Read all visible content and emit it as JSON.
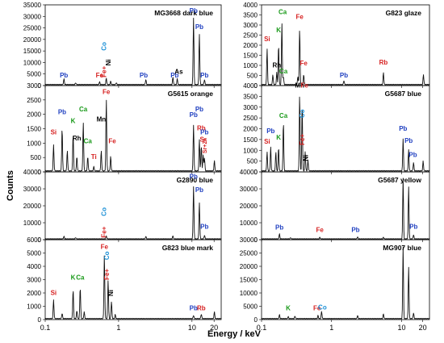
{
  "chart_data": {
    "type": "line",
    "xlabel": "Energy / keV",
    "ylabel": "Counts",
    "xscale": "log",
    "xlim": [
      0.1,
      25
    ],
    "xticks": [
      0.1,
      1,
      10,
      20
    ],
    "xtick_labels": [
      "0.1",
      "1",
      "10",
      "20"
    ],
    "colors": {
      "Pb": "#1f3fc0",
      "Fe": "#d61f1f",
      "Co": "#1a8fd6",
      "green": "#1a9a1a",
      "black": "#000000"
    },
    "panels": [
      {
        "title": "MG3668  dark blue",
        "column": 0,
        "ylim": [
          0,
          35000
        ],
        "yticks": [
          0,
          5000,
          10000,
          15000,
          20000,
          25000,
          30000,
          35000
        ],
        "labels": [
          {
            "text": "Pb",
            "color": "#1f3fc0",
            "x": 0.18,
            "y": 3500
          },
          {
            "text": "Fe",
            "color": "#d61f1f",
            "x": 0.55,
            "y": 3500
          },
          {
            "text": "Fe+",
            "color": "#d61f1f",
            "x": 0.68,
            "y": 6000,
            "rot": -90
          },
          {
            "text": "Co",
            "color": "#1a8fd6",
            "x": 0.68,
            "y": 17000,
            "rot": -90
          },
          {
            "text": "Ni",
            "color": "#000000",
            "x": 0.78,
            "y": 10000,
            "rot": -90
          },
          {
            "text": "Pb",
            "color": "#1f3fc0",
            "x": 2.2,
            "y": 3500
          },
          {
            "text": "Pb",
            "color": "#1f3fc0",
            "x": 10.5,
            "y": 31500
          },
          {
            "text": "Pb",
            "color": "#1f3fc0",
            "x": 5.8,
            "y": 3500
          },
          {
            "text": "As",
            "color": "#000000",
            "x": 6.6,
            "y": 5000
          },
          {
            "text": "Pb",
            "color": "#1f3fc0",
            "x": 12.6,
            "y": 24500
          },
          {
            "text": "Pb",
            "color": "#1f3fc0",
            "x": 14.8,
            "y": 3500
          }
        ],
        "peaks": [
          {
            "x": 0.18,
            "y": 2500
          },
          {
            "x": 0.26,
            "y": 800
          },
          {
            "x": 0.55,
            "y": 1200
          },
          {
            "x": 0.68,
            "y": 2800
          },
          {
            "x": 0.78,
            "y": 1400
          },
          {
            "x": 0.93,
            "y": 800
          },
          {
            "x": 2.35,
            "y": 2200
          },
          {
            "x": 5.5,
            "y": 3200
          },
          {
            "x": 6.3,
            "y": 2500
          },
          {
            "x": 10.5,
            "y": 29000
          },
          {
            "x": 12.6,
            "y": 22000
          },
          {
            "x": 14.8,
            "y": 2200
          }
        ]
      },
      {
        "title": "G5615  orange",
        "column": 0,
        "ylim": [
          0,
          3000
        ],
        "yticks": [
          0,
          500,
          1000,
          1500,
          2000,
          2500,
          3000
        ],
        "labels": [
          {
            "text": "Si",
            "color": "#d61f1f",
            "x": 0.13,
            "y": 1300
          },
          {
            "text": "Pb",
            "color": "#1f3fc0",
            "x": 0.17,
            "y": 2000
          },
          {
            "text": "K",
            "color": "#1a9a1a",
            "x": 0.24,
            "y": 1700
          },
          {
            "text": "Rh",
            "color": "#000000",
            "x": 0.27,
            "y": 1100
          },
          {
            "text": "Ca",
            "color": "#1a9a1a",
            "x": 0.33,
            "y": 2100
          },
          {
            "text": "Ca",
            "color": "#1a9a1a",
            "x": 0.38,
            "y": 1000
          },
          {
            "text": "Ti",
            "color": "#d61f1f",
            "x": 0.46,
            "y": 450
          },
          {
            "text": "Mn",
            "color": "#000000",
            "x": 0.58,
            "y": 1750
          },
          {
            "text": "Fe",
            "color": "#d61f1f",
            "x": 0.68,
            "y": 2700
          },
          {
            "text": "Fe",
            "color": "#d61f1f",
            "x": 0.82,
            "y": 1000
          },
          {
            "text": "Pb",
            "color": "#1f3fc0",
            "x": 10.5,
            "y": 1900
          },
          {
            "text": "Rb",
            "color": "#d61f1f",
            "x": 13.4,
            "y": 1450
          },
          {
            "text": "Pb",
            "color": "#1f3fc0",
            "x": 12.6,
            "y": 2100
          },
          {
            "text": "Sr",
            "color": "#d61f1f",
            "x": 14.2,
            "y": 1050
          },
          {
            "text": "Pb",
            "color": "#1f3fc0",
            "x": 14.8,
            "y": 1300
          },
          {
            "text": "Sr+Zr",
            "color": "#d61f1f",
            "x": 15.8,
            "y": 900,
            "rot": -90
          }
        ],
        "peaks": [
          {
            "x": 0.13,
            "y": 900
          },
          {
            "x": 0.17,
            "y": 1500
          },
          {
            "x": 0.2,
            "y": 700
          },
          {
            "x": 0.24,
            "y": 1300
          },
          {
            "x": 0.27,
            "y": 500
          },
          {
            "x": 0.33,
            "y": 1700
          },
          {
            "x": 0.38,
            "y": 500
          },
          {
            "x": 0.46,
            "y": 150
          },
          {
            "x": 0.58,
            "y": 700
          },
          {
            "x": 0.68,
            "y": 2500
          },
          {
            "x": 0.78,
            "y": 500
          },
          {
            "x": 10.5,
            "y": 1600
          },
          {
            "x": 12.6,
            "y": 1100
          },
          {
            "x": 13.4,
            "y": 900
          },
          {
            "x": 14.2,
            "y": 550
          },
          {
            "x": 14.8,
            "y": 450
          },
          {
            "x": 20.2,
            "y": 350
          }
        ]
      },
      {
        "title": "G2890 blue",
        "column": 0,
        "ylim": [
          0,
          40000
        ],
        "yticks": [
          0,
          10000,
          20000,
          30000,
          40000
        ],
        "labels": [
          {
            "text": "Fe+",
            "color": "#d61f1f",
            "x": 0.68,
            "y": 4500,
            "rot": -90
          },
          {
            "text": "Co",
            "color": "#1a8fd6",
            "x": 0.68,
            "y": 16500,
            "rot": -90
          },
          {
            "text": "Pb",
            "color": "#1f3fc0",
            "x": 10.5,
            "y": 36000
          },
          {
            "text": "Pb",
            "color": "#1f3fc0",
            "x": 12.6,
            "y": 28000
          },
          {
            "text": "Pb",
            "color": "#1f3fc0",
            "x": 14.8,
            "y": 6500
          }
        ],
        "peaks": [
          {
            "x": 0.18,
            "y": 1500
          },
          {
            "x": 0.26,
            "y": 800
          },
          {
            "x": 0.68,
            "y": 1800
          },
          {
            "x": 2.35,
            "y": 1500
          },
          {
            "x": 5.5,
            "y": 1800
          },
          {
            "x": 10.5,
            "y": 31000
          },
          {
            "x": 12.6,
            "y": 21500
          },
          {
            "x": 14.8,
            "y": 2200
          }
        ]
      },
      {
        "title": "G823 blue mark",
        "column": 0,
        "ylim": [
          0,
          6000
        ],
        "yticks": [
          0,
          1000,
          2000,
          3000,
          4000,
          5000,
          6000
        ],
        "labels": [
          {
            "text": "Si",
            "color": "#d61f1f",
            "x": 0.13,
            "y": 1850
          },
          {
            "text": "K",
            "color": "#1a9a1a",
            "x": 0.24,
            "y": 3000
          },
          {
            "text": "Ca",
            "color": "#1a9a1a",
            "x": 0.3,
            "y": 3000
          },
          {
            "text": "Fe",
            "color": "#d61f1f",
            "x": 0.64,
            "y": 5300
          },
          {
            "text": "Fe+",
            "color": "#d61f1f",
            "x": 0.74,
            "y": 3400,
            "rot": -90
          },
          {
            "text": "Co",
            "color": "#1a8fd6",
            "x": 0.74,
            "y": 4800,
            "rot": -90
          },
          {
            "text": "Ni",
            "color": "#000000",
            "x": 0.84,
            "y": 2000,
            "rot": -90
          },
          {
            "text": "Pb",
            "color": "#1f3fc0",
            "x": 10.5,
            "y": 700
          },
          {
            "text": "Rb",
            "color": "#d61f1f",
            "x": 13.4,
            "y": 700
          }
        ],
        "peaks": [
          {
            "x": 0.13,
            "y": 1400
          },
          {
            "x": 0.17,
            "y": 400
          },
          {
            "x": 0.24,
            "y": 2200
          },
          {
            "x": 0.27,
            "y": 600
          },
          {
            "x": 0.3,
            "y": 2400
          },
          {
            "x": 0.34,
            "y": 500
          },
          {
            "x": 0.64,
            "y": 4800
          },
          {
            "x": 0.72,
            "y": 2900
          },
          {
            "x": 0.8,
            "y": 1300
          },
          {
            "x": 0.9,
            "y": 300
          },
          {
            "x": 10.5,
            "y": 250
          },
          {
            "x": 13.4,
            "y": 350
          },
          {
            "x": 20.2,
            "y": 500
          }
        ]
      },
      {
        "title": "G823 glaze",
        "column": 1,
        "ylim": [
          0,
          4000
        ],
        "yticks": [
          0,
          500,
          1000,
          1500,
          2000,
          2500,
          3000,
          3500,
          4000
        ],
        "labels": [
          {
            "text": "Si",
            "color": "#d61f1f",
            "x": 0.12,
            "y": 2200
          },
          {
            "text": "Ca",
            "color": "#1a9a1a",
            "x": 0.2,
            "y": 3550
          },
          {
            "text": "K",
            "color": "#1a9a1a",
            "x": 0.175,
            "y": 2650
          },
          {
            "text": "Rh",
            "color": "#000000",
            "x": 0.165,
            "y": 900
          },
          {
            "text": "Ca",
            "color": "#1a9a1a",
            "x": 0.205,
            "y": 600
          },
          {
            "text": "Fe",
            "color": "#d61f1f",
            "x": 0.35,
            "y": 3300
          },
          {
            "text": "Fe",
            "color": "#d61f1f",
            "x": 0.4,
            "y": 1000
          },
          {
            "text": "Pb",
            "color": "#1f3fc0",
            "x": 1.5,
            "y": 400
          },
          {
            "text": "Rb",
            "color": "#d61f1f",
            "x": 5.5,
            "y": 1050
          }
        ],
        "peaks": [
          {
            "x": 0.12,
            "y": 1800
          },
          {
            "x": 0.145,
            "y": 500
          },
          {
            "x": 0.165,
            "y": 600
          },
          {
            "x": 0.175,
            "y": 2000
          },
          {
            "x": 0.195,
            "y": 3100
          },
          {
            "x": 0.205,
            "y": 400
          },
          {
            "x": 0.33,
            "y": 400
          },
          {
            "x": 0.35,
            "y": 2800
          },
          {
            "x": 0.4,
            "y": 500
          },
          {
            "x": 1.5,
            "y": 200
          },
          {
            "x": 5.5,
            "y": 600
          },
          {
            "x": 20.5,
            "y": 500
          }
        ]
      },
      {
        "title": "G5687 blue",
        "column": 1,
        "ylim": [
          0,
          4000
        ],
        "yticks": [
          0,
          500,
          1000,
          1500,
          2000,
          2500,
          3000,
          3500,
          4000
        ],
        "labels": [
          {
            "text": "Si",
            "color": "#d61f1f",
            "x": 0.12,
            "y": 1300
          },
          {
            "text": "Pb",
            "color": "#1f3fc0",
            "x": 0.135,
            "y": 1800
          },
          {
            "text": "K",
            "color": "#1a9a1a",
            "x": 0.175,
            "y": 1500
          },
          {
            "text": "Ca",
            "color": "#1a9a1a",
            "x": 0.205,
            "y": 2500
          },
          {
            "text": "Mn",
            "color": "#000000",
            "x": 0.35,
            "y": 3900
          },
          {
            "text": "Fe",
            "color": "#d61f1f",
            "x": 0.41,
            "y": 3900
          },
          {
            "text": "Fe+",
            "color": "#d61f1f",
            "x": 0.41,
            "y": 1500,
            "rot": -90
          },
          {
            "text": "Co",
            "color": "#1a8fd6",
            "x": 0.41,
            "y": 2700,
            "rot": -90
          },
          {
            "text": "Ni",
            "color": "#000000",
            "x": 0.46,
            "y": 650,
            "rot": -90
          },
          {
            "text": "Pb",
            "color": "#1f3fc0",
            "x": 10.5,
            "y": 1900
          },
          {
            "text": "Pb",
            "color": "#1f3fc0",
            "x": 12.6,
            "y": 1350
          },
          {
            "text": "Pb",
            "color": "#1f3fc0",
            "x": 14.5,
            "y": 700
          }
        ],
        "peaks": [
          {
            "x": 0.12,
            "y": 900
          },
          {
            "x": 0.135,
            "y": 1100
          },
          {
            "x": 0.16,
            "y": 900
          },
          {
            "x": 0.175,
            "y": 1100
          },
          {
            "x": 0.205,
            "y": 2300
          },
          {
            "x": 0.35,
            "y": 3600
          },
          {
            "x": 0.38,
            "y": 3100
          },
          {
            "x": 0.42,
            "y": 900
          },
          {
            "x": 0.46,
            "y": 500
          },
          {
            "x": 10.5,
            "y": 1500
          },
          {
            "x": 12.6,
            "y": 1000
          },
          {
            "x": 14.8,
            "y": 400
          },
          {
            "x": 20.3,
            "y": 450
          }
        ]
      },
      {
        "title": "G5687 yellow",
        "column": 1,
        "ylim": [
          0,
          40000
        ],
        "yticks": [
          0,
          10000,
          20000,
          30000,
          40000
        ],
        "labels": [
          {
            "text": "Pb",
            "color": "#1f3fc0",
            "x": 0.18,
            "y": 6000
          },
          {
            "text": "Fe",
            "color": "#d61f1f",
            "x": 0.68,
            "y": 4500
          },
          {
            "text": "Pb",
            "color": "#1f3fc0",
            "x": 2.2,
            "y": 4500
          },
          {
            "text": "Pb",
            "color": "#1f3fc0",
            "x": 14.8,
            "y": 6500
          }
        ],
        "peaks": [
          {
            "x": 0.18,
            "y": 3000
          },
          {
            "x": 0.26,
            "y": 800
          },
          {
            "x": 0.68,
            "y": 1000
          },
          {
            "x": 2.35,
            "y": 1200
          },
          {
            "x": 5.5,
            "y": 1000
          },
          {
            "x": 10.5,
            "y": 36000
          },
          {
            "x": 12.6,
            "y": 31000
          },
          {
            "x": 14.8,
            "y": 2500
          }
        ]
      },
      {
        "title": "MG907 blue",
        "column": 1,
        "ylim": [
          0,
          30000
        ],
        "yticks": [
          0,
          5000,
          10000,
          15000,
          20000,
          25000,
          30000
        ],
        "labels": [
          {
            "text": "K",
            "color": "#1a9a1a",
            "x": 0.24,
            "y": 3500
          },
          {
            "text": "Fe",
            "color": "#d61f1f",
            "x": 0.62,
            "y": 3500
          },
          {
            "text": "Co",
            "color": "#1a8fd6",
            "x": 0.74,
            "y": 3800
          }
        ],
        "peaks": [
          {
            "x": 0.18,
            "y": 1500
          },
          {
            "x": 0.24,
            "y": 800
          },
          {
            "x": 0.3,
            "y": 1000
          },
          {
            "x": 0.64,
            "y": 1200
          },
          {
            "x": 0.72,
            "y": 2800
          },
          {
            "x": 2.35,
            "y": 1200
          },
          {
            "x": 5.5,
            "y": 1800
          },
          {
            "x": 10.5,
            "y": 27000
          },
          {
            "x": 12.6,
            "y": 19500
          },
          {
            "x": 14.8,
            "y": 2200
          }
        ]
      }
    ]
  }
}
